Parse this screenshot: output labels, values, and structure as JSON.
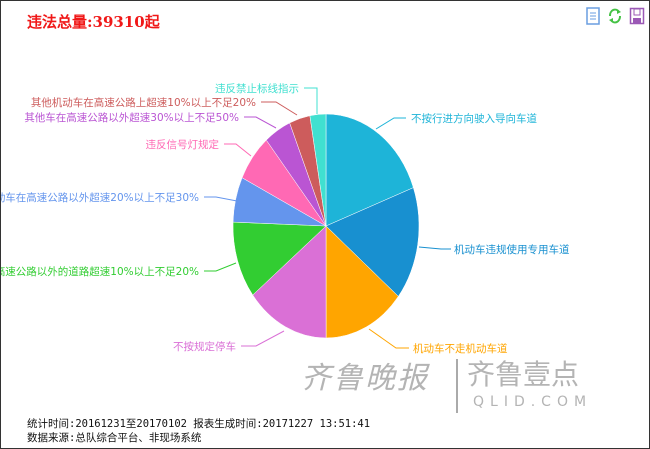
{
  "title": "违法总量:39310起",
  "toolbar": [
    {
      "icon": "data-view-icon",
      "color": "#6a9ee0"
    },
    {
      "icon": "refresh-icon",
      "color": "#44c244"
    },
    {
      "icon": "save-image-icon",
      "color": "#9b59b6"
    }
  ],
  "chart_data": {
    "type": "pie",
    "total": 39310,
    "slices": [
      {
        "label": "不按行进方向驶入导向车道",
        "value": 7640,
        "color": "#1eb4d8"
      },
      {
        "label": "机动车违规使用专用车道",
        "value": 6440,
        "color": "#1890d0"
      },
      {
        "label": "机动车不走机动车道",
        "value": 5570,
        "color": "#ffa500"
      },
      {
        "label": "不按规定停车",
        "value": 5680,
        "color": "#da70d6"
      },
      {
        "label": "高速公路以外的道路超速10%以上不足20%",
        "value": 4370,
        "color": "#32cd32"
      },
      {
        "label": "动车在高速公路以外超速20%以上不足30%",
        "value": 2570,
        "color": "#6495ed"
      },
      {
        "label": "违反信号灯规定",
        "value": 2680,
        "color": "#ff69b4"
      },
      {
        "label": "其他车在高速公路以外超速30%以上不足50%",
        "value": 1850,
        "color": "#ba55d3"
      },
      {
        "label": "其他机动车在高速公路上超速10%以上不足20%",
        "value": 1420,
        "color": "#cd5c5c"
      },
      {
        "label": "违反禁止标线指示",
        "value": 1090,
        "color": "#40e0d0"
      }
    ]
  },
  "watermark": {
    "brand1": "齐鲁晚报",
    "brand2": "齐鲁壹点",
    "domain": "QLID.COM"
  },
  "footer": {
    "line1": "统计时间:20161231至20170102 报表生成时间:20171227 13:51:41",
    "line2": "数据来源:总队综合平台、非现场系统"
  }
}
